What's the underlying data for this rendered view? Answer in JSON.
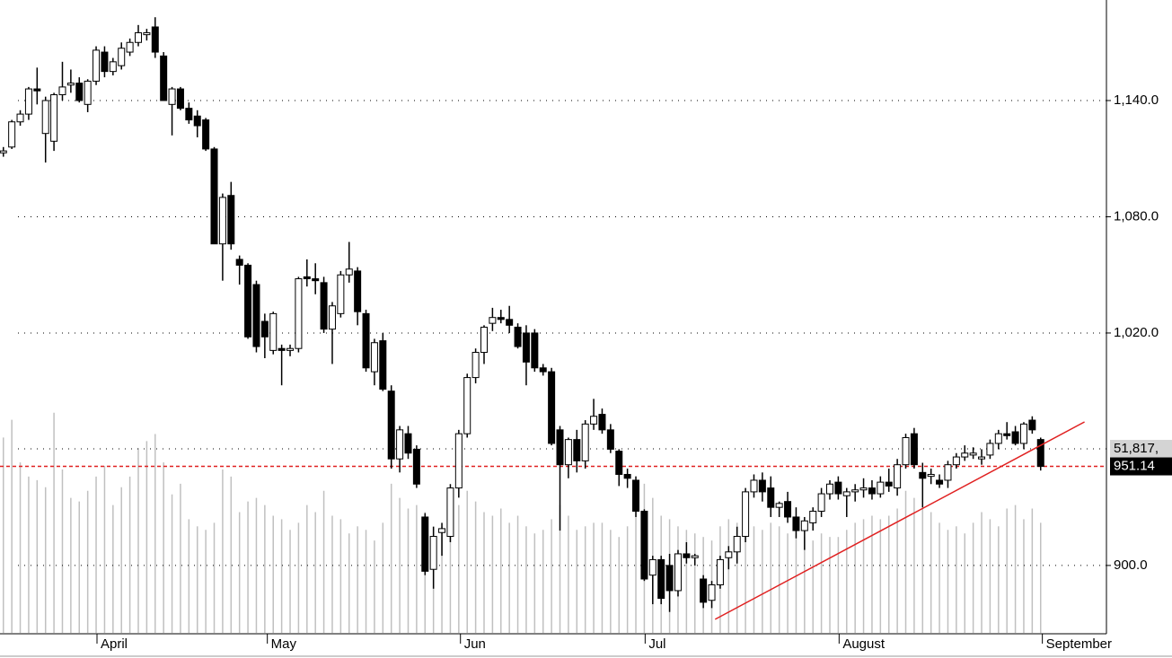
{
  "chart_data": {
    "type": "candlestick",
    "open": [
      1113,
      1116,
      1129,
      1133,
      1146,
      1123,
      1119,
      1143,
      1148,
      1149,
      1138,
      1150,
      1165,
      1155,
      1158,
      1165,
      1170,
      1174,
      1178,
      1163,
      1138,
      1146,
      1136,
      1132,
      1130,
      1115,
      1066,
      1091,
      1058,
      1055,
      1045,
      1026,
      1011,
      1012,
      1011,
      1012,
      1049,
      1048,
      1046,
      1022,
      1030,
      1050,
      1052,
      1030,
      1000,
      1016,
      990,
      955,
      968,
      960,
      925,
      898,
      917,
      915,
      940,
      968,
      997,
      1010,
      1025,
      1028,
      1027,
      1023,
      1020,
      1020,
      1002,
      1000,
      970,
      952,
      965,
      954,
      973,
      978,
      970,
      959,
      947,
      944,
      928,
      895,
      903,
      900,
      887,
      906,
      904,
      893,
      882,
      890,
      904,
      907,
      915,
      938,
      944,
      940,
      930,
      933,
      925,
      918,
      922,
      928,
      937,
      943,
      936,
      938,
      939,
      940,
      937,
      943,
      940,
      952,
      968,
      948,
      946,
      944,
      944,
      952,
      956,
      957,
      955,
      957,
      963,
      968,
      969,
      963,
      975,
      965
    ],
    "high": [
      1116,
      1130,
      1135,
      1147,
      1157,
      1142,
      1144,
      1160,
      1156,
      1152,
      1151,
      1168,
      1168,
      1162,
      1170,
      1172,
      1179,
      1177,
      1183,
      1165,
      1147,
      1147,
      1139,
      1135,
      1131,
      1116,
      1092,
      1098,
      1060,
      1056,
      1047,
      1030,
      1031,
      1014,
      1014,
      1049,
      1058,
      1056,
      1049,
      1036,
      1052,
      1067,
      1054,
      1032,
      1017,
      1020,
      993,
      972,
      972,
      962,
      927,
      920,
      922,
      942,
      970,
      999,
      1012,
      1024,
      1033,
      1032,
      1034,
      1025,
      1024,
      1022,
      1004,
      1002,
      972,
      966,
      970,
      975,
      986,
      981,
      973,
      960,
      950,
      946,
      929,
      905,
      905,
      906,
      908,
      912,
      906,
      895,
      892,
      905,
      910,
      920,
      940,
      947,
      948,
      946,
      933,
      938,
      930,
      925,
      930,
      940,
      944,
      946,
      940,
      942,
      945,
      944,
      946,
      950,
      955,
      968,
      971,
      953,
      950,
      947,
      954,
      958,
      962,
      961,
      960,
      965,
      970,
      974,
      972,
      974,
      977,
      966
    ],
    "low": [
      1111,
      1115,
      1127,
      1130,
      1138,
      1108,
      1114,
      1140,
      1144,
      1139,
      1134,
      1148,
      1152,
      1153,
      1156,
      1163,
      1168,
      1171,
      1162,
      1140,
      1122,
      1135,
      1128,
      1121,
      1114,
      1066,
      1047,
      1063,
      1045,
      1017,
      1010,
      1007,
      1009,
      993,
      1008,
      1010,
      1044,
      1040,
      1020,
      1004,
      1028,
      1046,
      1024,
      1000,
      993,
      990,
      950,
      948,
      955,
      940,
      895,
      888,
      905,
      912,
      935,
      966,
      994,
      1004,
      1021,
      1025,
      1020,
      1012,
      993,
      1000,
      998,
      962,
      918,
      945,
      948,
      950,
      970,
      968,
      958,
      941,
      940,
      925,
      892,
      880,
      880,
      876,
      884,
      901,
      900,
      878,
      878,
      888,
      898,
      901,
      912,
      935,
      933,
      925,
      925,
      922,
      914,
      908,
      918,
      925,
      934,
      934,
      925,
      933,
      935,
      934,
      935,
      938,
      936,
      950,
      950,
      930,
      942,
      940,
      940,
      950,
      954,
      955,
      952,
      955,
      960,
      965,
      962,
      960,
      968,
      949
    ],
    "close": [
      1114,
      1129,
      1133,
      1146,
      1145,
      1140,
      1143,
      1147,
      1149,
      1140,
      1150,
      1166,
      1155,
      1160,
      1167,
      1170,
      1175,
      1175,
      1165,
      1140,
      1146,
      1136,
      1130,
      1127,
      1115,
      1066,
      1090,
      1066,
      1055,
      1018,
      1013,
      1018,
      1030,
      1011,
      1012,
      1048,
      1048,
      1047,
      1022,
      1034,
      1050,
      1053,
      1031,
      1002,
      1015,
      991,
      955,
      970,
      958,
      942,
      897,
      915,
      919,
      940,
      968,
      997,
      1010,
      1023,
      1028,
      1027,
      1024,
      1013,
      1005,
      1002,
      1000,
      963,
      952,
      965,
      954,
      973,
      977,
      970,
      960,
      947,
      945,
      928,
      893,
      903,
      883,
      887,
      906,
      904,
      905,
      881,
      890,
      903,
      907,
      915,
      938,
      944,
      938,
      930,
      932,
      925,
      918,
      923,
      928,
      937,
      942,
      937,
      938,
      939,
      940,
      937,
      943,
      941,
      952,
      966,
      952,
      945,
      947,
      942,
      952,
      956,
      958,
      958,
      956,
      963,
      968,
      967,
      963,
      973,
      970,
      951.14
    ],
    "volume": [
      55000,
      60000,
      48000,
      44000,
      43000,
      41000,
      62000,
      46000,
      38000,
      37000,
      40000,
      44000,
      47000,
      36000,
      41000,
      44000,
      52000,
      54000,
      56000,
      48000,
      39000,
      42000,
      32000,
      30000,
      29000,
      31000,
      46000,
      44000,
      34000,
      37000,
      38000,
      36000,
      33000,
      32000,
      29000,
      31000,
      36000,
      34000,
      40000,
      33000,
      32000,
      28000,
      30000,
      29000,
      26000,
      31000,
      42000,
      38000,
      35000,
      36000,
      34000,
      30000,
      30000,
      34000,
      36000,
      40000,
      37000,
      34000,
      33000,
      35000,
      31000,
      33000,
      30000,
      28000,
      29000,
      32000,
      36000,
      33000,
      29000,
      30000,
      31000,
      31000,
      29000,
      27000,
      30000,
      36000,
      42000,
      38000,
      33000,
      32000,
      30000,
      29000,
      28000,
      27000,
      26000,
      30000,
      32000,
      31000,
      33000,
      30000,
      29000,
      31000,
      30000,
      28000,
      29000,
      27000,
      26000,
      28000,
      27000,
      27000,
      29000,
      31000,
      32000,
      33000,
      32000,
      33000,
      35000,
      40000,
      38000,
      36000,
      34000,
      31000,
      29000,
      30000,
      28000,
      31000,
      34000,
      32000,
      30000,
      35000,
      36000,
      32000,
      35000,
      31000
    ],
    "ylim": [
      865.2,
      1191.9
    ],
    "yticks": [
      {
        "value": 900,
        "label": "900.0"
      },
      {
        "value": 1020,
        "label": "1,020.0"
      },
      {
        "value": 1080,
        "label": "1,080.0"
      },
      {
        "value": 1140,
        "label": "1,140.0"
      }
    ],
    "vlim": [
      0,
      178200
    ],
    "volume_marker": {
      "value": 51817,
      "label": "51,817,"
    },
    "last_price": {
      "value": 951.14,
      "label": "951.14",
      "color": "#e02020"
    },
    "trendline": {
      "x": [
        84.4,
        128.2
      ],
      "y": [
        872.2,
        974.1
      ],
      "color": "#e02020"
    },
    "xlim": [
      -0.4,
      130.8
    ],
    "xticks": [
      {
        "value": 11.1,
        "label": "April"
      },
      {
        "value": 31.3,
        "label": "May"
      },
      {
        "value": 54.2,
        "label": "Jun"
      },
      {
        "value": 76.1,
        "label": "Jul"
      },
      {
        "value": 99.1,
        "label": "August"
      },
      {
        "value": 123.2,
        "label": "September"
      }
    ],
    "grid": true,
    "up_color": "#ffffff",
    "down_color": "#000000",
    "volume_color": "#c0c0c0"
  }
}
